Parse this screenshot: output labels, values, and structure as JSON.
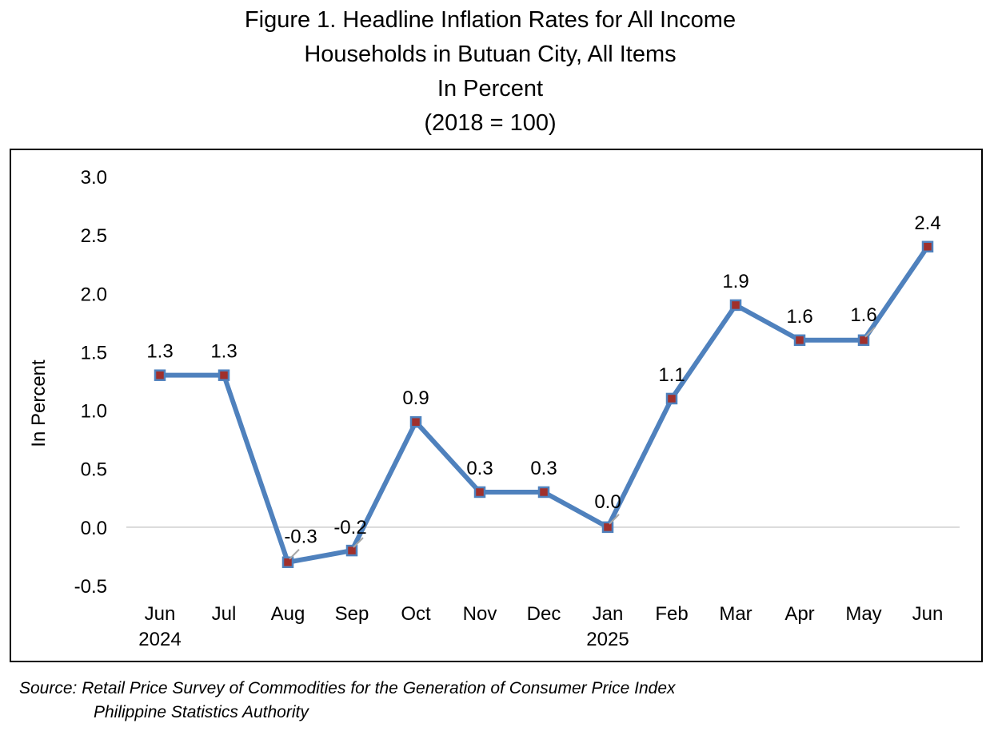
{
  "title_lines": [
    "Figure 1. Headline Inflation Rates for All Income",
    "Households in Butuan City, All Items",
    "In Percent",
    "(2018 = 100)"
  ],
  "source": {
    "line1": "Source: Retail Price Survey of Commodities for the Generation of Consumer Price Index",
    "line2": "Philippine Statistics Authority"
  },
  "chart_data": {
    "type": "line",
    "categories": [
      [
        "Jun",
        "2024"
      ],
      [
        "Jul"
      ],
      [
        "Aug"
      ],
      [
        "Sep"
      ],
      [
        "Oct"
      ],
      [
        "Nov"
      ],
      [
        "Dec"
      ],
      [
        "Jan",
        "2025"
      ],
      [
        "Feb"
      ],
      [
        "Mar"
      ],
      [
        "Apr"
      ],
      [
        "May"
      ],
      [
        "Jun"
      ]
    ],
    "series": [
      {
        "values": [
          1.3,
          1.3,
          -0.3,
          -0.2,
          0.9,
          0.3,
          0.3,
          0.0,
          1.1,
          1.9,
          1.6,
          1.6,
          2.4
        ]
      }
    ],
    "data_labels": [
      "1.3",
      "1.3",
      "-0.3",
      "-0.2",
      "0.9",
      "0.3",
      "0.3",
      "0.0",
      "1.1",
      "1.9",
      "1.6",
      "1.6",
      "2.4"
    ],
    "ylabel": "In Percent",
    "ylim": [
      -0.5,
      3.0
    ],
    "yticks": [
      "3.0",
      "2.5",
      "2.0",
      "1.5",
      "1.0",
      "0.5",
      "0.0",
      "-0.5"
    ],
    "ytick_values": [
      3.0,
      2.5,
      2.0,
      1.5,
      1.0,
      0.5,
      0.0,
      -0.5
    ],
    "zero_line": true,
    "line_color": "#4f81bd",
    "marker_color": "#a0302c",
    "grid": false,
    "legend": "none"
  }
}
